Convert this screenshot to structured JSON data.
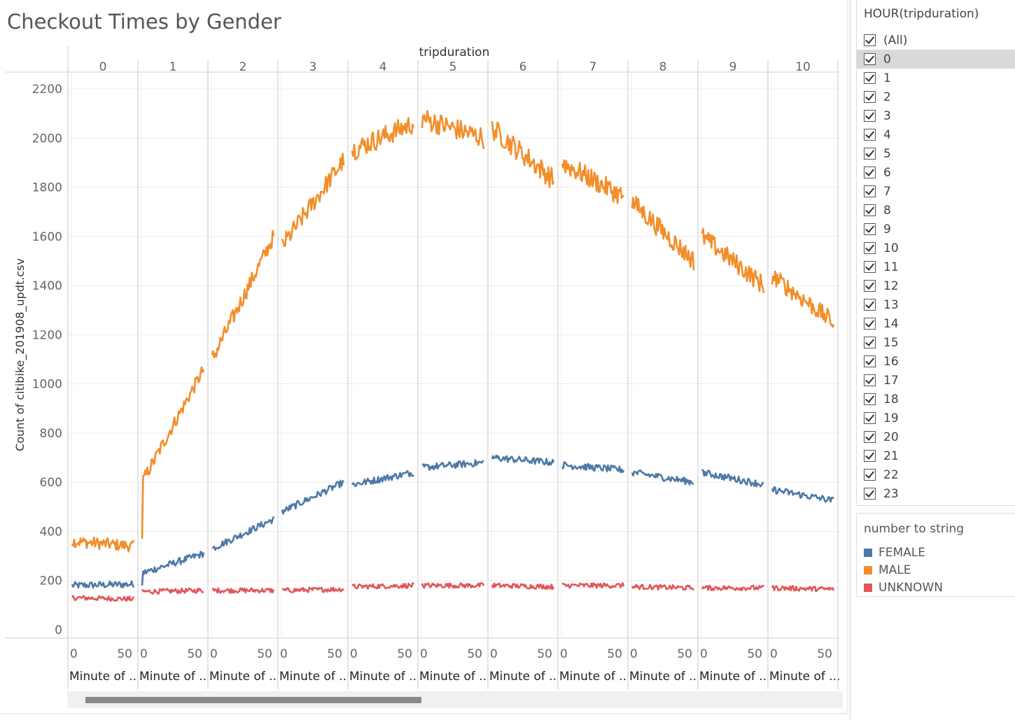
{
  "title": "Checkout Times by Gender",
  "chart_data": {
    "type": "line",
    "title": "Checkout Times by Gender",
    "column_header": "tripduration",
    "panels": [
      "0",
      "1",
      "2",
      "3",
      "4",
      "5",
      "6",
      "7",
      "8",
      "9",
      "10"
    ],
    "x_field_label": "Minute of ..",
    "x_field_label_last": "Minute of ...",
    "x_ticks": [
      "0",
      "50"
    ],
    "ylabel": "Count of citibike_201908_updt.csv",
    "yticks": [
      "2200",
      "2000",
      "1800",
      "1600",
      "1400",
      "1200",
      "1000",
      "800",
      "600",
      "400",
      "200",
      "0"
    ],
    "ylim": [
      0,
      2250
    ],
    "series": [
      {
        "name": "FEMALE",
        "color": "#4e79a7",
        "values": [
          [
            180,
            185
          ],
          [
            230,
            310
          ],
          [
            330,
            450
          ],
          [
            480,
            600
          ],
          [
            590,
            640
          ],
          [
            660,
            680
          ],
          [
            700,
            680
          ],
          [
            670,
            650
          ],
          [
            640,
            600
          ],
          [
            640,
            590
          ],
          [
            570,
            525
          ]
        ]
      },
      {
        "name": "MALE",
        "color": "#f28e2b",
        "values": [
          [
            360,
            340
          ],
          [
            600,
            1060
          ],
          [
            1100,
            1600
          ],
          [
            1560,
            1910
          ],
          [
            1950,
            2060
          ],
          [
            2080,
            2000
          ],
          [
            2040,
            1830
          ],
          [
            1900,
            1760
          ],
          [
            1740,
            1500
          ],
          [
            1600,
            1400
          ],
          [
            1440,
            1250
          ]
        ]
      },
      {
        "name": "UNKNOWN",
        "color": "#e15759",
        "values": [
          [
            130,
            125
          ],
          [
            155,
            160
          ],
          [
            160,
            160
          ],
          [
            160,
            165
          ],
          [
            175,
            180
          ],
          [
            180,
            180
          ],
          [
            180,
            175
          ],
          [
            180,
            180
          ],
          [
            175,
            170
          ],
          [
            170,
            170
          ],
          [
            170,
            165
          ]
        ]
      }
    ]
  },
  "filter": {
    "title": "HOUR(tripduration)",
    "items": [
      "(All)",
      "0",
      "1",
      "2",
      "3",
      "4",
      "5",
      "6",
      "7",
      "8",
      "9",
      "10",
      "11",
      "12",
      "13",
      "14",
      "15",
      "16",
      "17",
      "18",
      "19",
      "20",
      "21",
      "22",
      "23"
    ]
  },
  "legend": {
    "title": "number to string",
    "items": [
      {
        "label": "FEMALE",
        "color": "#4e79a7"
      },
      {
        "label": "MALE",
        "color": "#f28e2b"
      },
      {
        "label": "UNKNOWN",
        "color": "#e15759"
      }
    ]
  }
}
